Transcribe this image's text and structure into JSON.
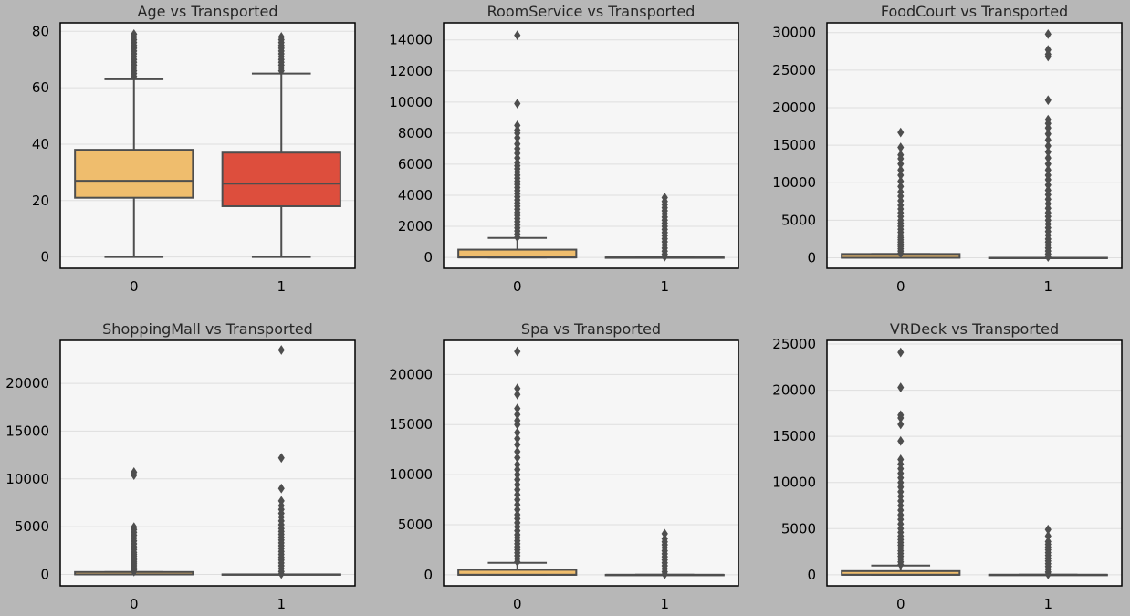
{
  "chart_data": [
    {
      "type": "box",
      "title": "Age vs Transported",
      "categories": [
        "0",
        "1"
      ],
      "yticks": [
        0,
        20,
        40,
        60,
        80
      ],
      "ylim": [
        -4,
        83
      ],
      "grid": true,
      "colors": [
        "#efbd6d",
        "#dd4e3d"
      ],
      "boxes": [
        {
          "category": "0",
          "whisker_low": 0,
          "q1": 21,
          "median": 27,
          "q3": 38,
          "whisker_high": 63,
          "outliers": [
            64,
            65,
            66,
            67,
            68,
            69,
            70,
            71,
            72,
            73,
            74,
            75,
            76,
            77,
            78,
            79
          ]
        },
        {
          "category": "1",
          "whisker_low": 0,
          "q1": 18,
          "median": 26,
          "q3": 37,
          "whisker_high": 65,
          "outliers": [
            66,
            67,
            68,
            69,
            70,
            71,
            72,
            73,
            74,
            75,
            76,
            77,
            78
          ]
        }
      ]
    },
    {
      "type": "box",
      "title": "RoomService vs Transported",
      "categories": [
        "0",
        "1"
      ],
      "yticks": [
        0,
        2000,
        4000,
        6000,
        8000,
        10000,
        12000,
        14000
      ],
      "ylim": [
        -700,
        15100
      ],
      "grid": true,
      "colors": [
        "#efbd6d",
        "#dd4e3d"
      ],
      "boxes": [
        {
          "category": "0",
          "whisker_low": 0,
          "q1": 0,
          "median": 0,
          "q3": 500,
          "whisker_high": 1250,
          "outliers": [
            1300,
            1500,
            1700,
            1900,
            2100,
            2300,
            2500,
            2700,
            2900,
            3100,
            3300,
            3500,
            3700,
            3900,
            4100,
            4300,
            4500,
            4700,
            4900,
            5100,
            5300,
            5500,
            5700,
            5900,
            6100,
            6400,
            6700,
            7000,
            7300,
            7700,
            8000,
            8200,
            8500,
            9900,
            14300
          ]
        },
        {
          "category": "1",
          "whisker_low": 0,
          "q1": 0,
          "median": 0,
          "q3": 0,
          "whisker_high": 0,
          "outliers": [
            50,
            200,
            400,
            600,
            800,
            1000,
            1200,
            1400,
            1600,
            1800,
            2000,
            2200,
            2400,
            2600,
            2800,
            3000,
            3200,
            3400,
            3600,
            3850
          ]
        }
      ]
    },
    {
      "type": "box",
      "title": "FoodCourt vs Transported",
      "categories": [
        "0",
        "1"
      ],
      "yticks": [
        0,
        5000,
        10000,
        15000,
        20000,
        25000,
        30000
      ],
      "ylim": [
        -1400,
        31300
      ],
      "grid": true,
      "colors": [
        "#efbd6d",
        "#dd4e3d"
      ],
      "boxes": [
        {
          "category": "0",
          "whisker_low": 0,
          "q1": 0,
          "median": 0,
          "q3": 500,
          "whisker_high": 500,
          "outliers": [
            600,
            900,
            1200,
            1500,
            1800,
            2100,
            2400,
            2700,
            3000,
            3400,
            3800,
            4200,
            4600,
            5000,
            5500,
            6000,
            6500,
            7000,
            7600,
            8200,
            8800,
            9500,
            10200,
            11000,
            11700,
            12500,
            13200,
            13700,
            14700,
            16700
          ]
        },
        {
          "category": "1",
          "whisker_low": 0,
          "q1": 0,
          "median": 0,
          "q3": 0,
          "whisker_high": 0,
          "outliers": [
            100,
            500,
            900,
            1300,
            1700,
            2100,
            2500,
            3000,
            3500,
            4000,
            4500,
            5000,
            5500,
            6000,
            6600,
            7200,
            7800,
            8400,
            9000,
            9700,
            10400,
            11000,
            11700,
            12500,
            13300,
            14100,
            14900,
            15700,
            16500,
            17300,
            17900,
            18400,
            21000,
            26800,
            27100,
            27700,
            29800
          ]
        }
      ]
    },
    {
      "type": "box",
      "title": "ShoppingMall vs Transported",
      "categories": [
        "0",
        "1"
      ],
      "yticks": [
        0,
        5000,
        10000,
        15000,
        20000
      ],
      "ylim": [
        -1200,
        24500
      ],
      "grid": true,
      "colors": [
        "#efbd6d",
        "#dd4e3d"
      ],
      "boxes": [
        {
          "category": "0",
          "whisker_low": 0,
          "q1": 0,
          "median": 0,
          "q3": 250,
          "whisker_high": 250,
          "outliers": [
            300,
            500,
            700,
            900,
            1100,
            1300,
            1500,
            1700,
            1900,
            2100,
            2300,
            2600,
            2900,
            3200,
            3500,
            3800,
            4100,
            4400,
            4700,
            4950,
            10400,
            10700
          ]
        },
        {
          "category": "1",
          "whisker_low": 0,
          "q1": 0,
          "median": 0,
          "q3": 0,
          "whisker_high": 0,
          "outliers": [
            50,
            300,
            600,
            900,
            1200,
            1500,
            1800,
            2100,
            2400,
            2700,
            3000,
            3300,
            3600,
            3900,
            4200,
            4500,
            4800,
            5200,
            5600,
            6000,
            6400,
            6800,
            7200,
            7700,
            9000,
            12200,
            23500
          ]
        }
      ]
    },
    {
      "type": "box",
      "title": "Spa vs Transported",
      "categories": [
        "0",
        "1"
      ],
      "yticks": [
        0,
        5000,
        10000,
        15000,
        20000
      ],
      "ylim": [
        -1100,
        23400
      ],
      "grid": true,
      "colors": [
        "#efbd6d",
        "#dd4e3d"
      ],
      "boxes": [
        {
          "category": "0",
          "whisker_low": 0,
          "q1": 0,
          "median": 0,
          "q3": 500,
          "whisker_high": 1200,
          "outliers": [
            1300,
            1600,
            1900,
            2200,
            2500,
            2800,
            3100,
            3400,
            3700,
            4000,
            4400,
            4800,
            5200,
            5600,
            6000,
            6500,
            7000,
            7500,
            8000,
            8500,
            9000,
            9500,
            10000,
            10500,
            11000,
            11700,
            12300,
            13000,
            13600,
            14200,
            15000,
            15400,
            16000,
            16600,
            18000,
            18600,
            22300
          ]
        },
        {
          "category": "1",
          "whisker_low": 0,
          "q1": 0,
          "median": 0,
          "q3": 0,
          "whisker_high": 0,
          "outliers": [
            50,
            300,
            600,
            900,
            1200,
            1500,
            1800,
            2100,
            2400,
            2700,
            3000,
            3300,
            3600,
            4100
          ]
        }
      ]
    },
    {
      "type": "box",
      "title": "VRDeck vs Transported",
      "categories": [
        "0",
        "1"
      ],
      "yticks": [
        0,
        5000,
        10000,
        15000,
        20000,
        25000
      ],
      "ylim": [
        -1200,
        25400
      ],
      "grid": true,
      "colors": [
        "#efbd6d",
        "#dd4e3d"
      ],
      "boxes": [
        {
          "category": "0",
          "whisker_low": 0,
          "q1": 0,
          "median": 0,
          "q3": 400,
          "whisker_high": 1000,
          "outliers": [
            1100,
            1400,
            1700,
            2000,
            2300,
            2600,
            2900,
            3200,
            3500,
            3800,
            4200,
            4600,
            5000,
            5500,
            6000,
            6500,
            7000,
            7500,
            8000,
            8500,
            9000,
            9500,
            10000,
            10500,
            11000,
            11500,
            12000,
            12500,
            14500,
            16300,
            17000,
            17300,
            20300,
            24100
          ]
        },
        {
          "category": "1",
          "whisker_low": 0,
          "q1": 0,
          "median": 0,
          "q3": 0,
          "whisker_high": 0,
          "outliers": [
            50,
            300,
            600,
            900,
            1200,
            1500,
            1800,
            2100,
            2400,
            2700,
            3000,
            3300,
            3600,
            4200,
            4900
          ]
        }
      ]
    }
  ]
}
